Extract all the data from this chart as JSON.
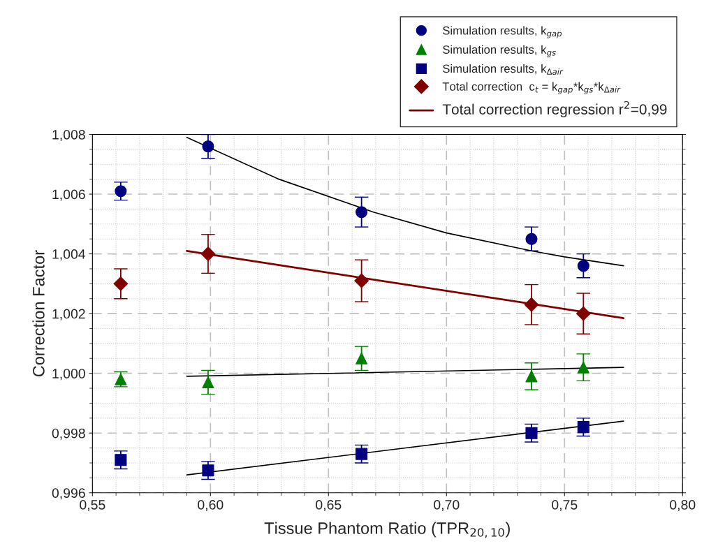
{
  "chart_data": {
    "type": "scatter",
    "xlabel": "Tissue Phantom Ratio (TPR$_{20,10}$)",
    "ylabel": "Correction Factor",
    "x": [
      0.562,
      0.599,
      0.664,
      0.736,
      0.758
    ],
    "series": [
      {
        "name": "Simulation results, k$_{gap}$",
        "color": "#000080",
        "marker": "circle",
        "values": [
          1.0061,
          1.0076,
          1.0054,
          1.0045,
          1.0036
        ],
        "errors": [
          0.0003,
          0.0004,
          0.0005,
          0.0004,
          0.0004
        ]
      },
      {
        "name": "Simulation results, k$_{gs}$",
        "color": "#008000",
        "marker": "triangle",
        "values": [
          0.9998,
          0.9997,
          1.0005,
          0.9999,
          1.0002
        ],
        "errors": [
          0.00025,
          0.0004,
          0.0004,
          0.00045,
          0.00045
        ]
      },
      {
        "name": "Simulation results, k$_{Δair}$",
        "color": "#000080",
        "marker": "square",
        "values": [
          0.9971,
          0.99675,
          0.9973,
          0.998,
          0.9982
        ],
        "errors": [
          0.0003,
          0.0003,
          0.0003,
          0.0003,
          0.0003
        ]
      },
      {
        "name": "Total correction  c$_{t}$ = k$_{gap}$*k$_{gs}$*k$_{Δair}$",
        "color": "#800000",
        "marker": "diamond",
        "values": [
          1.003,
          1.004,
          1.0031,
          1.0023,
          1.002
        ],
        "errors": [
          0.0005,
          0.00065,
          0.0007,
          0.00067,
          0.00068
        ]
      },
      {
        "type": "line",
        "color": "#000000",
        "x": [
          0.59,
          0.629,
          0.669,
          0.7,
          0.736,
          0.75,
          0.775
        ],
        "values": [
          1.0079,
          1.0065,
          1.0054,
          1.0047,
          1.0041,
          1.0039,
          1.0036
        ]
      },
      {
        "type": "line",
        "color": "#000000",
        "x": [
          0.59,
          0.775
        ],
        "values": [
          0.9999,
          1.0002
        ]
      },
      {
        "type": "line",
        "color": "#000000",
        "x": [
          0.59,
          0.775
        ],
        "values": [
          0.9966,
          0.9984
        ]
      },
      {
        "type": "line",
        "name": "Total correction regression r$^{2}$=0,99",
        "color": "#800000",
        "x": [
          0.59,
          0.775
        ],
        "values": [
          1.0041,
          1.00185
        ]
      }
    ],
    "xlim": [
      0.55,
      0.8
    ],
    "ylim": [
      0.996,
      1.008
    ],
    "xticks": [
      {
        "value": 0.55,
        "label": "0,55"
      },
      {
        "value": 0.6,
        "label": "0,60"
      },
      {
        "value": 0.65,
        "label": "0,65"
      },
      {
        "value": 0.7,
        "label": "0,70"
      },
      {
        "value": 0.75,
        "label": "0,75"
      },
      {
        "value": 0.8,
        "label": "0,80"
      }
    ],
    "yticks": [
      {
        "value": 0.996,
        "label": "0,996"
      },
      {
        "value": 0.998,
        "label": "0,998"
      },
      {
        "value": 1.0,
        "label": "1,000"
      },
      {
        "value": 1.002,
        "label": "1,002"
      },
      {
        "value": 1.004,
        "label": "1,004"
      },
      {
        "value": 1.006,
        "label": "1,006"
      },
      {
        "value": 1.008,
        "label": "1,008"
      }
    ],
    "grid": true,
    "legend": "top right"
  }
}
